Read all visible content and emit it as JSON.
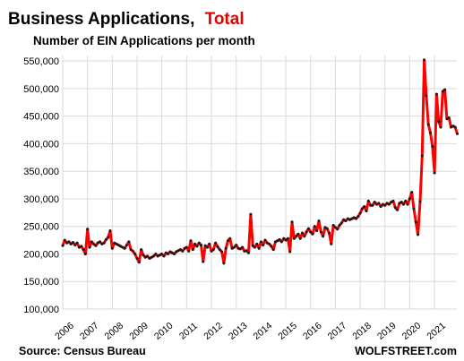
{
  "chart_data": {
    "type": "line",
    "title": "Business Applications,",
    "title_highlight": "Total",
    "subtitle": "Number of EIN Applications per month",
    "source": "Source: Census Bureau",
    "brand": "WOLFSTREET.com",
    "series_color": "#ff0000",
    "marker_color": "#1a1a1a",
    "title_highlight_color": "#e60000",
    "grid": true,
    "ylim": [
      100000,
      560000
    ],
    "yticks": [
      100000,
      150000,
      200000,
      250000,
      300000,
      350000,
      400000,
      450000,
      500000,
      550000
    ],
    "ytick_labels": [
      "100,000",
      "150,000",
      "200,000",
      "250,000",
      "300,000",
      "350,000",
      "400,000",
      "450,000",
      "500,000",
      "550,000"
    ],
    "xlim": [
      2006.0,
      2021.9
    ],
    "xticks": [
      2006,
      2007,
      2008,
      2009,
      2010,
      2011,
      2012,
      2013,
      2014,
      2015,
      2016,
      2017,
      2018,
      2019,
      2020,
      2021
    ],
    "xtick_labels": [
      "2006",
      "2007",
      "2008",
      "2009",
      "2010",
      "2011",
      "2012",
      "2013",
      "2014",
      "2015",
      "2016",
      "2017",
      "2018",
      "2019",
      "2020",
      "2021"
    ],
    "start": "2006-01",
    "values": [
      215000,
      225000,
      220000,
      222000,
      218000,
      221000,
      216000,
      220000,
      212000,
      214000,
      208000,
      200000,
      245000,
      212000,
      222000,
      218000,
      215000,
      220000,
      222000,
      218000,
      220000,
      226000,
      230000,
      242000,
      210000,
      220000,
      218000,
      216000,
      214000,
      212000,
      210000,
      216000,
      222000,
      208000,
      205000,
      200000,
      192000,
      185000,
      208000,
      198000,
      194000,
      196000,
      192000,
      194000,
      196000,
      200000,
      196000,
      198000,
      200000,
      196000,
      202000,
      200000,
      204000,
      202000,
      200000,
      204000,
      206000,
      208000,
      205000,
      210000,
      212000,
      205000,
      224000,
      208000,
      218000,
      214000,
      220000,
      216000,
      186000,
      215000,
      212000,
      218000,
      205000,
      208000,
      220000,
      213000,
      208000,
      204000,
      183000,
      210000,
      224000,
      228000,
      210000,
      212000,
      216000,
      210000,
      209000,
      212000,
      205000,
      206000,
      202000,
      272000,
      215000,
      212000,
      218000,
      210000,
      222000,
      216000,
      225000,
      220000,
      218000,
      214000,
      208000,
      222000,
      224000,
      226000,
      222000,
      228000,
      225000,
      228000,
      204000,
      258000,
      228000,
      232000,
      236000,
      228000,
      238000,
      232000,
      240000,
      246000,
      240000,
      236000,
      250000,
      242000,
      260000,
      240000,
      232000,
      248000,
      246000,
      238000,
      218000,
      252000,
      248000,
      245000,
      252000,
      256000,
      262000,
      260000,
      264000,
      262000,
      264000,
      266000,
      264000,
      268000,
      274000,
      282000,
      286000,
      278000,
      296000,
      288000,
      288000,
      294000,
      290000,
      292000,
      286000,
      290000,
      288000,
      292000,
      290000,
      294000,
      296000,
      284000,
      280000,
      292000,
      294000,
      290000,
      296000,
      290000,
      300000,
      312000,
      282000,
      258000,
      235000,
      295000,
      378000,
      552000,
      487000,
      435000,
      420000,
      395000,
      347000,
      490000,
      440000,
      430000,
      495000,
      498000,
      445000,
      447000,
      430000,
      432000,
      430000,
      418000
    ]
  }
}
